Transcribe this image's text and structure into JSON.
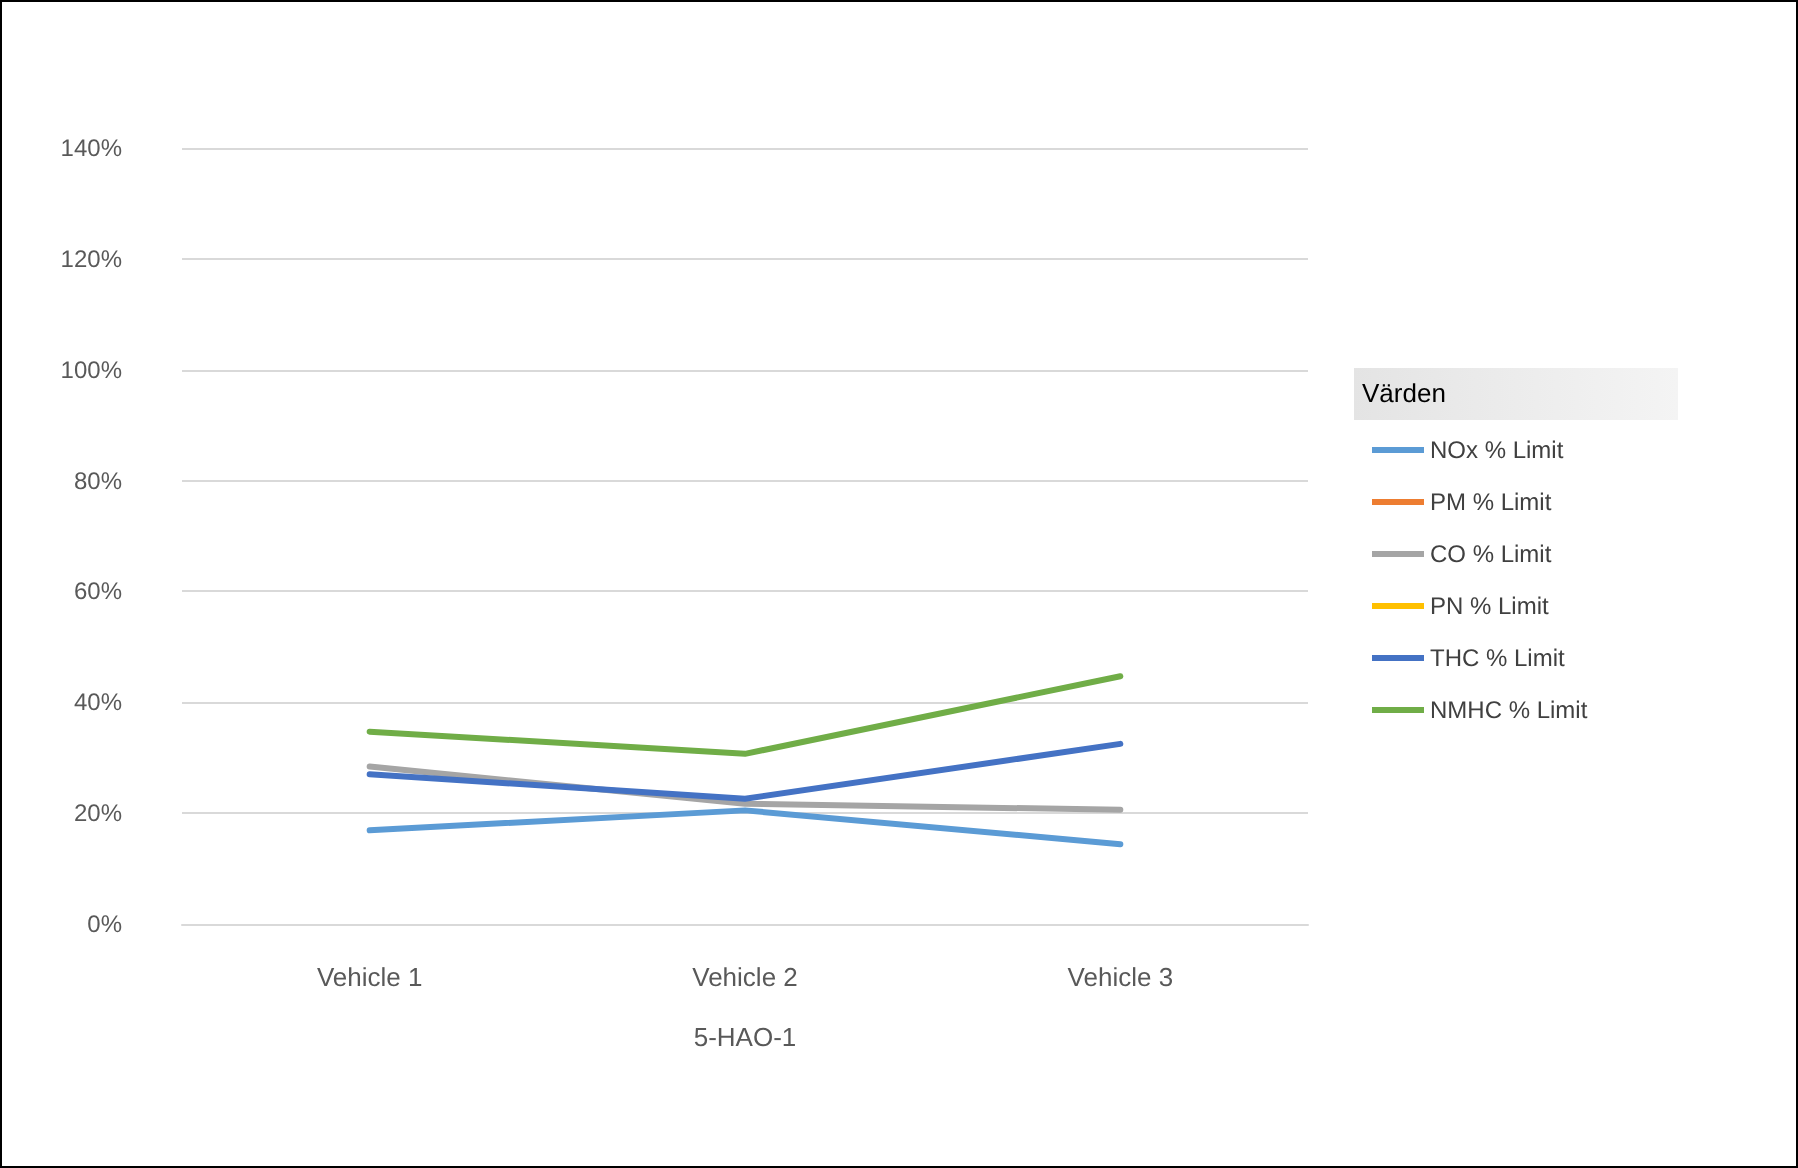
{
  "chart_data": {
    "type": "line",
    "categories": [
      "Vehicle 1",
      "Vehicle 2",
      "Vehicle 3"
    ],
    "xlabel": "5-HAO-1",
    "legend_title": "Värden",
    "series": [
      {
        "name": "NOx % Limit",
        "color": "#5b9bd5",
        "values": [
          16.9,
          20.5,
          14.4
        ]
      },
      {
        "name": "PM % Limit",
        "color": "#ed7d31",
        "values": [
          null,
          null,
          null
        ]
      },
      {
        "name": "CO % Limit",
        "color": "#a5a5a5",
        "values": [
          28.4,
          21.7,
          20.6
        ]
      },
      {
        "name": "PN % Limit",
        "color": "#ffc000",
        "values": [
          null,
          null,
          null
        ]
      },
      {
        "name": "THC % Limit",
        "color": "#4472c4",
        "values": [
          27,
          22.6,
          32.5
        ]
      },
      {
        "name": "NMHC % Limit",
        "color": "#70ad47",
        "values": [
          34.7,
          30.7,
          44.7
        ]
      }
    ],
    "ylim": [
      0,
      140
    ],
    "yticks": [
      {
        "value": 0,
        "label": "0%"
      },
      {
        "value": 20,
        "label": "20%"
      },
      {
        "value": 40,
        "label": "40%"
      },
      {
        "value": 60,
        "label": "60%"
      },
      {
        "value": 80,
        "label": "80%"
      },
      {
        "value": 100,
        "label": "100%"
      },
      {
        "value": 120,
        "label": "120%"
      },
      {
        "value": 140,
        "label": "140%"
      }
    ],
    "grid": "y",
    "legend": "right",
    "marker": "none",
    "line_style": "solid"
  }
}
